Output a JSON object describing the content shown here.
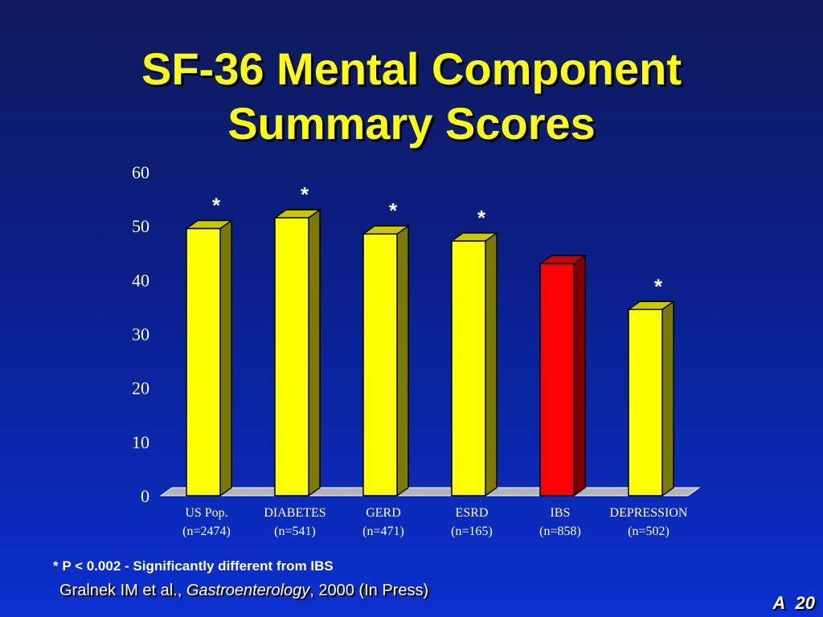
{
  "slide": {
    "title_line1": "SF-36 Mental Component",
    "title_line2": "Summary Scores",
    "footnote": "* P < 0.002 - Significantly different from IBS",
    "citation_authors": "Gralnek IM et al., ",
    "citation_journal": "Gastroenterology",
    "citation_rest": ", 2000 (In Press)",
    "slide_letter": "A",
    "slide_number": "20"
  },
  "colors": {
    "bar_default": "#ffff00",
    "bar_highlight": "#ff0000",
    "title": "#ffff00",
    "background_top": "#0e1a5a",
    "background_bottom": "#0a30d0"
  },
  "chart_data": {
    "type": "bar",
    "categories": [
      "US Pop.",
      "DIABETES",
      "GERD",
      "ESRD",
      "IBS",
      "DEPRESSION"
    ],
    "sample_sizes": [
      "(n=2474)",
      "(n=541)",
      "(n=471)",
      "(n=165)",
      "(n=858)",
      "(n=502)"
    ],
    "values": [
      49.5,
      51.5,
      48.5,
      47.2,
      43,
      34.5
    ],
    "significance": [
      "*",
      "*",
      "*",
      "*",
      "",
      "*"
    ],
    "highlight": [
      "no",
      "no",
      "no",
      "no",
      "yes",
      "no"
    ],
    "yticks": [
      0,
      10,
      20,
      30,
      40,
      50,
      60
    ],
    "ylim": [
      0,
      60
    ],
    "grid": false,
    "style": "3d"
  }
}
